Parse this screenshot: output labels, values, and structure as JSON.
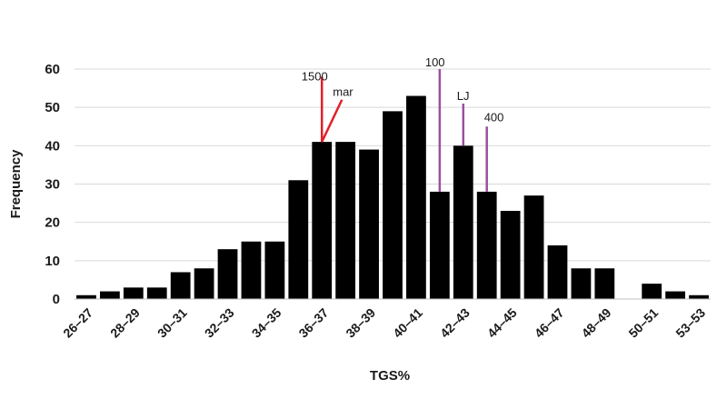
{
  "chart_data": {
    "type": "bar",
    "title": "",
    "xlabel": "TGS%",
    "ylabel": "Frequency",
    "ylim": [
      0,
      60
    ],
    "yticks": [
      0,
      10,
      20,
      30,
      40,
      50,
      60
    ],
    "grid": "horizontal",
    "bar_color": "#000000",
    "categories": [
      "26–27",
      "27–28",
      "28–29",
      "29–30",
      "30–31",
      "31–32",
      "32–33",
      "33–34",
      "34–35",
      "35–36",
      "36–37",
      "37–38",
      "38–39",
      "39–40",
      "40–41",
      "41–42",
      "42–43",
      "43–44",
      "44–45",
      "45–46",
      "46–47",
      "47–48",
      "48–49",
      "49–50",
      "50–51",
      "51–52",
      "53–53"
    ],
    "tick_labels": [
      "26–27",
      "",
      "28–29",
      "",
      "30–31",
      "",
      "32–33",
      "",
      "34–35",
      "",
      "36–37",
      "",
      "38–39",
      "",
      "40–41",
      "",
      "42–43",
      "",
      "44–45",
      "",
      "46–47",
      "",
      "48–49",
      "",
      "50–51",
      "",
      "53–53"
    ],
    "values": [
      1,
      2,
      3,
      3,
      7,
      8,
      13,
      15,
      15,
      31,
      41,
      41,
      39,
      49,
      53,
      28,
      40,
      28,
      23,
      27,
      14,
      8,
      8,
      0,
      4,
      2,
      1
    ],
    "annotations": [
      {
        "label": "1500",
        "color": "#e0202a",
        "category_index": 10,
        "top_value": 58
      },
      {
        "label": "mar",
        "color": "#e0202a",
        "category_index": 10,
        "top_value": 52,
        "slanted": true
      },
      {
        "label": "100",
        "color": "#9b4f9f",
        "category_index": 15,
        "top_value": 60
      },
      {
        "label": "LJ",
        "color": "#9b4f9f",
        "category_index": 16,
        "top_value": 51
      },
      {
        "label": "400",
        "color": "#9b4f9f",
        "category_index": 17,
        "top_value": 45
      }
    ]
  }
}
